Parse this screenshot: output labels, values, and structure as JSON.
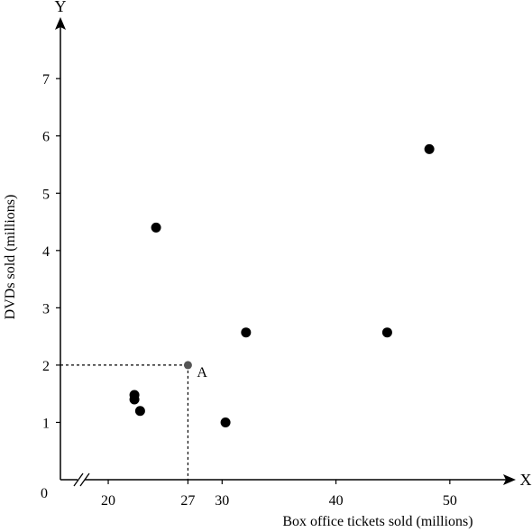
{
  "chart_data": {
    "type": "scatter",
    "axis_x_letter": "X",
    "axis_y_letter": "Y",
    "origin_label": "0",
    "xlabel": "Box office tickets sold (millions)",
    "ylabel": "DVDs sold (millions)",
    "x_axis_break": true,
    "xlim": [
      15.8,
      55
    ],
    "ylim": [
      0,
      7.9
    ],
    "x_ticks": [
      20,
      27,
      30,
      40,
      50
    ],
    "y_ticks": [
      1,
      2,
      3,
      4,
      5,
      6,
      7
    ],
    "grid": false,
    "points": [
      {
        "x": 22.3,
        "y": 1.48
      },
      {
        "x": 22.3,
        "y": 1.4
      },
      {
        "x": 22.8,
        "y": 1.2
      },
      {
        "x": 24.2,
        "y": 4.4
      },
      {
        "x": 30.3,
        "y": 1.0
      },
      {
        "x": 32.1,
        "y": 2.57
      },
      {
        "x": 44.5,
        "y": 2.57
      },
      {
        "x": 48.2,
        "y": 5.77
      }
    ],
    "highlight": {
      "x": 27,
      "y": 2,
      "label": "A",
      "color": "#555555"
    },
    "point_color": "#000000"
  }
}
